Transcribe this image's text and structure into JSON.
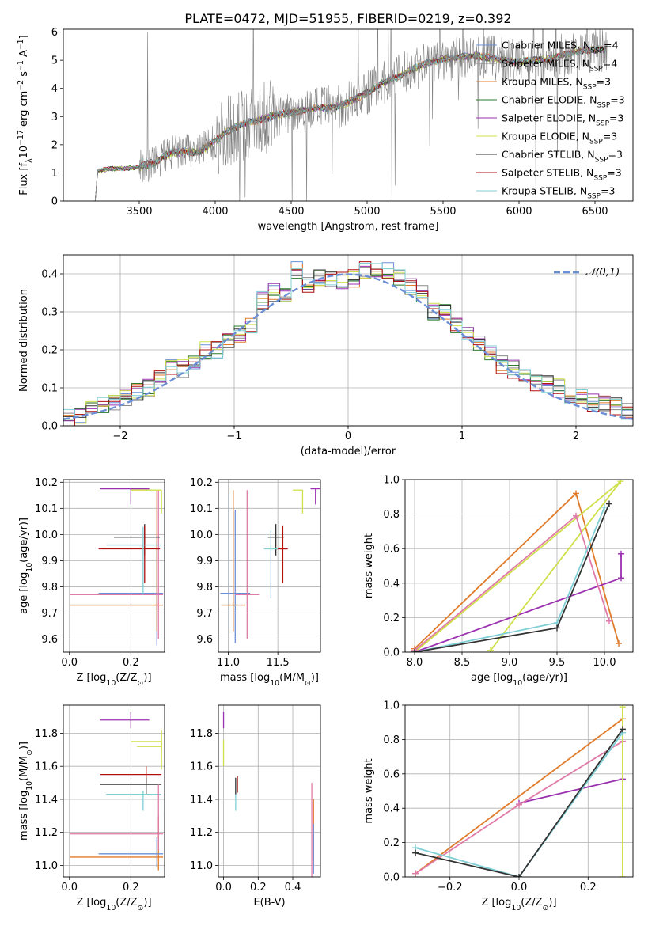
{
  "figure": {
    "title": "PLATE=0472, MJD=51955, FIBERID=0219, z=0.392"
  },
  "colors": {
    "Chabrier MILES": "#6b8fd6",
    "Salpeter MILES": "#8a8a8a",
    "Kroupa MILES": "#e07b2a",
    "Chabrier ELODIE": "#2a7a2a",
    "Salpeter ELODIE": "#9b30b0",
    "Kroupa ELODIE": "#cfe04a",
    "Chabrier STELIB": "#333333",
    "Salpeter STELIB": "#b01010",
    "Kroupa STELIB": "#7fcfd6",
    "pink": "#e07aa8",
    "data": "#808080"
  },
  "chart_data": [
    {
      "id": "spectrum",
      "type": "line",
      "title": "PLATE=0472, MJD=51955, FIBERID=0219, z=0.392",
      "xlabel": "wavelength [Angstrom, rest frame]",
      "ylabel": "Flux [f_λ10^-17 erg cm^-2 s^-1 A^-1]",
      "xlim": [
        3000,
        6750
      ],
      "ylim": [
        0,
        6.1
      ],
      "xticks": [
        3500,
        4000,
        4500,
        5000,
        5500,
        6000,
        6500
      ],
      "yticks": [
        0,
        1,
        2,
        3,
        4,
        5,
        6
      ],
      "grid": false,
      "legend_position": "right",
      "legend": [
        "Chabrier MILES, N_SSP=4",
        "Salpeter MILES, N_SSP=4",
        "Kroupa MILES, N_SSP=3",
        "Chabrier ELODIE, N_SSP=3",
        "Salpeter ELODIE, N_SSP=3",
        "Kroupa ELODIE, N_SSP=3",
        "Chabrier STELIB, N_SSP=3",
        "Salpeter STELIB, N_SSP=3",
        "Kroupa STELIB, N_SSP=3"
      ],
      "data_range_A": [
        3210,
        6580
      ],
      "continuum": [
        [
          3210,
          0.0
        ],
        [
          3220,
          1.05
        ],
        [
          3300,
          1.15
        ],
        [
          3400,
          1.15
        ],
        [
          3500,
          1.2
        ],
        [
          3600,
          1.35
        ],
        [
          3700,
          1.7
        ],
        [
          3800,
          1.75
        ],
        [
          3900,
          1.75
        ],
        [
          4000,
          2.15
        ],
        [
          4100,
          2.55
        ],
        [
          4200,
          2.75
        ],
        [
          4300,
          2.9
        ],
        [
          4400,
          3.05
        ],
        [
          4500,
          3.15
        ],
        [
          4600,
          3.25
        ],
        [
          4700,
          3.3
        ],
        [
          4800,
          3.35
        ],
        [
          4900,
          3.55
        ],
        [
          5000,
          3.85
        ],
        [
          5100,
          4.2
        ],
        [
          5200,
          4.4
        ],
        [
          5300,
          4.7
        ],
        [
          5400,
          4.9
        ],
        [
          5500,
          5.05
        ],
        [
          5600,
          5.1
        ],
        [
          5700,
          5.15
        ],
        [
          5800,
          5.1
        ],
        [
          5900,
          5.0
        ],
        [
          6000,
          4.95
        ],
        [
          6100,
          5.0
        ],
        [
          6200,
          5.05
        ],
        [
          6300,
          5.2
        ],
        [
          6400,
          5.35
        ],
        [
          6500,
          5.35
        ],
        [
          6580,
          5.4
        ]
      ]
    },
    {
      "id": "residual_hist",
      "type": "histogram",
      "xlabel": "(data-model)/error",
      "ylabel": "Normed distribution",
      "xlim": [
        -2.5,
        2.5
      ],
      "ylim": [
        0,
        0.45
      ],
      "xticks": [
        -2,
        -1,
        0,
        1,
        2
      ],
      "yticks": [
        0.0,
        0.1,
        0.2,
        0.3,
        0.4
      ],
      "grid": true,
      "legend": [
        "𝒩(0,1)"
      ],
      "legend_position": "top-right",
      "bin_edges": [
        -2.5,
        -2.4,
        -2.3,
        -2.2,
        -2.1,
        -2.0,
        -1.9,
        -1.8,
        -1.7,
        -1.6,
        -1.5,
        -1.4,
        -1.3,
        -1.2,
        -1.1,
        -1.0,
        -0.9,
        -0.8,
        -0.7,
        -0.6,
        -0.5,
        -0.4,
        -0.3,
        -0.2,
        -0.1,
        0.0,
        0.1,
        0.2,
        0.3,
        0.4,
        0.5,
        0.6,
        0.7,
        0.8,
        0.9,
        1.0,
        1.1,
        1.2,
        1.3,
        1.4,
        1.5,
        1.6,
        1.7,
        1.8,
        1.9,
        2.0,
        2.1,
        2.2,
        2.3,
        2.4,
        2.5
      ],
      "base_values": [
        0.02,
        0.03,
        0.04,
        0.05,
        0.06,
        0.07,
        0.09,
        0.1,
        0.13,
        0.15,
        0.15,
        0.17,
        0.2,
        0.2,
        0.22,
        0.24,
        0.26,
        0.33,
        0.35,
        0.35,
        0.41,
        0.37,
        0.39,
        0.39,
        0.38,
        0.39,
        0.41,
        0.41,
        0.41,
        0.39,
        0.37,
        0.35,
        0.3,
        0.3,
        0.26,
        0.25,
        0.22,
        0.19,
        0.16,
        0.15,
        0.13,
        0.11,
        0.11,
        0.1,
        0.08,
        0.08,
        0.06,
        0.06,
        0.05,
        0.04
      ],
      "gaussian": {
        "mean": 0,
        "sigma": 1
      }
    },
    {
      "id": "age_vs_Z",
      "type": "errorbar",
      "xlabel": "Z [log10(Z/Z⊙)]",
      "ylabel": "age  [log10(age/yr)]",
      "xlim": [
        -0.02,
        0.31
      ],
      "ylim": [
        9.55,
        10.21
      ],
      "xticks": [
        0.0,
        0.2
      ],
      "yticks": [
        9.6,
        9.7,
        9.8,
        9.9,
        10.0,
        10.1,
        10.2
      ],
      "grid": true,
      "points": [
        {
          "model": "Chabrier MILES",
          "x": 0.285,
          "y": 9.775,
          "xerr": [
            0.19,
            0.02
          ],
          "yerr": [
            0.2,
            0.2
          ]
        },
        {
          "model": "Kroupa MILES",
          "x": 0.285,
          "y": 9.73,
          "xerr": [
            0.285,
            0.02
          ],
          "yerr": [
            0.1,
            0.44
          ]
        },
        {
          "model": "pink",
          "x": 0.29,
          "y": 9.77,
          "xerr": [
            0.29,
            0.015
          ],
          "yerr": [
            0.17,
            0.4
          ]
        },
        {
          "model": "Chabrier STELIB",
          "x": 0.245,
          "y": 9.99,
          "xerr": [
            0.1,
            0.05
          ],
          "yerr": [
            0.07,
            0.05
          ]
        },
        {
          "model": "Salpeter STELIB",
          "x": 0.245,
          "y": 9.945,
          "xerr": [
            0.15,
            0.05
          ],
          "yerr": [
            0.13,
            0.09
          ]
        },
        {
          "model": "Kroupa STELIB",
          "x": 0.24,
          "y": 9.96,
          "xerr": [
            0.12,
            0.06
          ],
          "yerr": [
            0.19,
            0.07
          ]
        },
        {
          "model": "Salpeter ELODIE",
          "x": 0.2,
          "y": 10.175,
          "xerr": [
            0.1,
            0.06
          ],
          "yerr": [
            0.06,
            0.0
          ]
        },
        {
          "model": "Kroupa ELODIE",
          "x": 0.3,
          "y": 10.17,
          "xerr": [
            0.1,
            0.0
          ],
          "yerr": [
            0.09,
            0.0
          ]
        }
      ]
    },
    {
      "id": "age_vs_mass",
      "type": "errorbar",
      "xlabel": "mass [log10(M/M⊙)]",
      "ylabel": "",
      "xlim": [
        10.9,
        11.93
      ],
      "ylim": [
        9.55,
        10.21
      ],
      "xticks": [
        11.0,
        11.5
      ],
      "yticks": [
        9.6,
        9.7,
        9.8,
        9.9,
        10.0,
        10.1,
        10.2
      ],
      "grid": true,
      "points": [
        {
          "model": "Chabrier MILES",
          "x": 11.07,
          "y": 9.775,
          "xerr": [
            0.15,
            0.15
          ],
          "yerr": [
            0.19,
            0.32
          ]
        },
        {
          "model": "Kroupa MILES",
          "x": 11.05,
          "y": 9.73,
          "xerr": [
            0.12,
            0.12
          ],
          "yerr": [
            0.1,
            0.44
          ]
        },
        {
          "model": "pink",
          "x": 11.19,
          "y": 9.77,
          "xerr": [
            0.12,
            0.12
          ],
          "yerr": [
            0.17,
            0.4
          ]
        },
        {
          "model": "Chabrier STELIB",
          "x": 11.48,
          "y": 9.99,
          "xerr": [
            0.08,
            0.08
          ],
          "yerr": [
            0.07,
            0.05
          ]
        },
        {
          "model": "Salpeter STELIB",
          "x": 11.55,
          "y": 9.945,
          "xerr": [
            0.07,
            0.05
          ],
          "yerr": [
            0.13,
            0.09
          ]
        },
        {
          "model": "Kroupa STELIB",
          "x": 11.43,
          "y": 9.945,
          "xerr": [
            0.07,
            0.07
          ],
          "yerr": [
            0.19,
            0.07
          ]
        },
        {
          "model": "Salpeter ELODIE",
          "x": 11.88,
          "y": 10.175,
          "xerr": [
            0.05,
            0.05
          ],
          "yerr": [
            0.06,
            0.0
          ]
        },
        {
          "model": "Kroupa ELODIE",
          "x": 11.75,
          "y": 10.17,
          "xerr": [
            0.1,
            0.0
          ],
          "yerr": [
            0.09,
            0.0
          ]
        }
      ]
    },
    {
      "id": "weight_vs_age",
      "type": "line",
      "xlabel": "age  [log10(age/yr)]",
      "ylabel": "mass weight",
      "xlim": [
        7.9,
        10.3
      ],
      "ylim": [
        0.0,
        1.0
      ],
      "xticks": [
        8.0,
        8.5,
        9.0,
        9.5,
        10.0
      ],
      "yticks": [
        0.0,
        0.2,
        0.4,
        0.6,
        0.8,
        1.0
      ],
      "grid": true,
      "series": [
        {
          "model": "Kroupa MILES",
          "x": [
            8.0,
            9.7,
            10.15
          ],
          "y": [
            0.02,
            0.92,
            0.05
          ]
        },
        {
          "model": "Salpeter ELODIE",
          "x": [
            8.0,
            10.175,
            10.175
          ],
          "y": [
            0.0,
            0.43,
            0.57
          ]
        },
        {
          "model": "Kroupa ELODIE",
          "x": [
            8.8,
            10.17,
            8.0
          ],
          "y": [
            0.01,
            0.99,
            0.0
          ]
        },
        {
          "model": "pink",
          "x": [
            8.0,
            9.7,
            10.05
          ],
          "y": [
            0.01,
            0.79,
            0.18
          ]
        },
        {
          "model": "Kroupa STELIB",
          "x": [
            8.0,
            9.5,
            10.0
          ],
          "y": [
            0.0,
            0.17,
            0.84
          ]
        },
        {
          "model": "Chabrier STELIB",
          "x": [
            8.0,
            9.5,
            10.05
          ],
          "y": [
            0.0,
            0.14,
            0.86
          ]
        }
      ]
    },
    {
      "id": "mass_vs_Z",
      "type": "errorbar",
      "xlabel": "Z [log10(Z/Z⊙)]",
      "ylabel": "mass [log10(M/M⊙)]",
      "xlim": [
        -0.02,
        0.31
      ],
      "ylim": [
        10.93,
        11.97
      ],
      "xticks": [
        0.0,
        0.2
      ],
      "yticks": [
        11.0,
        11.2,
        11.4,
        11.6,
        11.8
      ],
      "grid": true,
      "points": [
        {
          "model": "Salpeter ELODIE",
          "x": 0.2,
          "y": 11.88,
          "xerr": [
            0.1,
            0.06
          ],
          "yerr": [
            0.05,
            0.05
          ]
        },
        {
          "model": "Kroupa ELODIE",
          "x": 0.3,
          "y": 11.75,
          "xerr": [
            0.1,
            0.0
          ],
          "yerr": [
            0.05,
            0.0
          ]
        },
        {
          "model": "Kroupa ELODIE",
          "x": 0.3,
          "y": 11.72,
          "xerr": [
            0.08,
            0.0
          ],
          "yerr": [
            0.14,
            0.1
          ]
        },
        {
          "model": "Salpeter STELIB",
          "x": 0.25,
          "y": 11.55,
          "xerr": [
            0.15,
            0.05
          ],
          "yerr": [
            0.05,
            0.05
          ]
        },
        {
          "model": "Chabrier STELIB",
          "x": 0.25,
          "y": 11.49,
          "xerr": [
            0.15,
            0.05
          ],
          "yerr": [
            0.06,
            0.04
          ]
        },
        {
          "model": "Kroupa STELIB",
          "x": 0.24,
          "y": 11.43,
          "xerr": [
            0.12,
            0.06
          ],
          "yerr": [
            0.1,
            0.02
          ]
        },
        {
          "model": "Kroupa MILES",
          "x": 0.29,
          "y": 11.05,
          "xerr": [
            0.29,
            0.015
          ],
          "yerr": [
            0.08,
            0.25
          ]
        },
        {
          "model": "pink",
          "x": 0.29,
          "y": 11.19,
          "xerr": [
            0.29,
            0.015
          ],
          "yerr": [
            0.1,
            0.3
          ]
        },
        {
          "model": "Chabrier MILES",
          "x": 0.285,
          "y": 11.07,
          "xerr": [
            0.19,
            0.02
          ],
          "yerr": [
            0.08,
            0.1
          ]
        }
      ]
    },
    {
      "id": "mass_vs_ebv",
      "type": "errorbar",
      "xlabel": "E(B-V)",
      "ylabel": "",
      "xlim": [
        -0.03,
        0.56
      ],
      "ylim": [
        10.93,
        11.97
      ],
      "xticks": [
        0.0,
        0.2,
        0.4
      ],
      "yticks": [
        11.0,
        11.2,
        11.4,
        11.6,
        11.8
      ],
      "grid": true,
      "points": [
        {
          "model": "Salpeter ELODIE",
          "x": 0.0,
          "y": 11.88,
          "xerr": [
            0,
            0
          ],
          "yerr": [
            0.05,
            0.05
          ]
        },
        {
          "model": "Kroupa ELODIE",
          "x": 0.0,
          "y": 11.68,
          "xerr": [
            0,
            0
          ],
          "yerr": [
            0.08,
            0.08
          ]
        },
        {
          "model": "Salpeter STELIB",
          "x": 0.08,
          "y": 11.49,
          "xerr": [
            0,
            0
          ],
          "yerr": [
            0.05,
            0.05
          ]
        },
        {
          "model": "Kroupa STELIB",
          "x": 0.07,
          "y": 11.43,
          "xerr": [
            0,
            0
          ],
          "yerr": [
            0.1,
            0.1
          ]
        },
        {
          "model": "Chabrier STELIB",
          "x": 0.07,
          "y": 11.48,
          "xerr": [
            0,
            0
          ],
          "yerr": [
            0.05,
            0.05
          ]
        },
        {
          "model": "Kroupa MILES",
          "x": 0.52,
          "y": 11.2,
          "xerr": [
            0,
            0
          ],
          "yerr": [
            0.2,
            0.2
          ]
        },
        {
          "model": "pink",
          "x": 0.51,
          "y": 11.2,
          "xerr": [
            0,
            0
          ],
          "yerr": [
            0.3,
            0.3
          ]
        },
        {
          "model": "Chabrier MILES",
          "x": 0.52,
          "y": 11.1,
          "xerr": [
            0,
            0
          ],
          "yerr": [
            0.15,
            0.15
          ]
        }
      ]
    },
    {
      "id": "weight_vs_Z",
      "type": "line",
      "xlabel": "Z [log10(Z/Z⊙)]",
      "ylabel": "mass weight",
      "xlim": [
        -0.33,
        0.33
      ],
      "ylim": [
        0.0,
        1.0
      ],
      "xticks": [
        -0.2,
        0.0,
        0.2
      ],
      "yticks": [
        0.0,
        0.2,
        0.4,
        0.6,
        0.8,
        1.0
      ],
      "grid": true,
      "series": [
        {
          "model": "Kroupa MILES",
          "x": [
            -0.3,
            0.3
          ],
          "y": [
            0.02,
            0.92
          ]
        },
        {
          "model": "Salpeter ELODIE",
          "x": [
            0.0,
            0.3
          ],
          "y": [
            0.43,
            0.57
          ]
        },
        {
          "model": "pink",
          "x": [
            -0.3,
            0.0,
            0.3
          ],
          "y": [
            0.02,
            0.42,
            0.79
          ]
        },
        {
          "model": "Kroupa ELODIE",
          "x": [
            0.3,
            0.3
          ],
          "y": [
            0.0,
            0.99
          ]
        },
        {
          "model": "Kroupa STELIB",
          "x": [
            -0.3,
            0.0,
            0.3
          ],
          "y": [
            0.17,
            0.0,
            0.84
          ]
        },
        {
          "model": "Chabrier STELIB",
          "x": [
            -0.3,
            0.0,
            0.3
          ],
          "y": [
            0.14,
            0.0,
            0.86
          ]
        }
      ]
    }
  ]
}
